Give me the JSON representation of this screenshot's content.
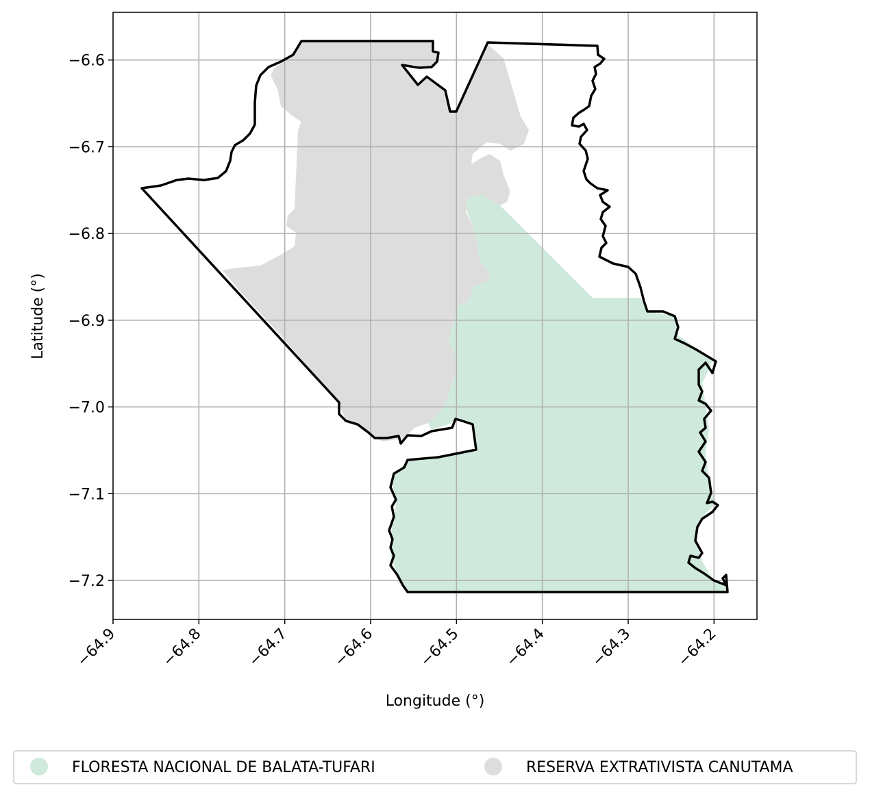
{
  "map": {
    "xlabel": "Longitude (°)",
    "ylabel": "Latitude (°)",
    "xlim": [
      -64.9,
      -64.15
    ],
    "ylim": [
      -7.245,
      -6.545
    ],
    "xticks": [
      -64.9,
      -64.8,
      -64.7,
      -64.6,
      -64.5,
      -64.4,
      -64.3,
      -64.2
    ],
    "xtick_labels": [
      "−64.9",
      "−64.8",
      "−64.7",
      "−64.6",
      "−64.5",
      "−64.4",
      "−64.3",
      "−64.2"
    ],
    "yticks": [
      -6.6,
      -6.7,
      -6.8,
      -6.9,
      -7.0,
      -7.1,
      -7.2
    ],
    "ytick_labels": [
      "−6.6",
      "−6.7",
      "−6.8",
      "−6.9",
      "−7.0",
      "−7.1",
      "−7.2"
    ],
    "grid": true,
    "legend": {
      "placement": "bottom",
      "items": [
        {
          "label": "FLORESTA NACIONAL DE BALATA-TUFARI",
          "color": "#cfeadc"
        },
        {
          "label": "RESERVA EXTRATIVISTA CANUTAMA",
          "color": "#dddddd"
        }
      ]
    },
    "colors": {
      "boundary": "#000000",
      "grid": "#b0b0b0"
    }
  }
}
